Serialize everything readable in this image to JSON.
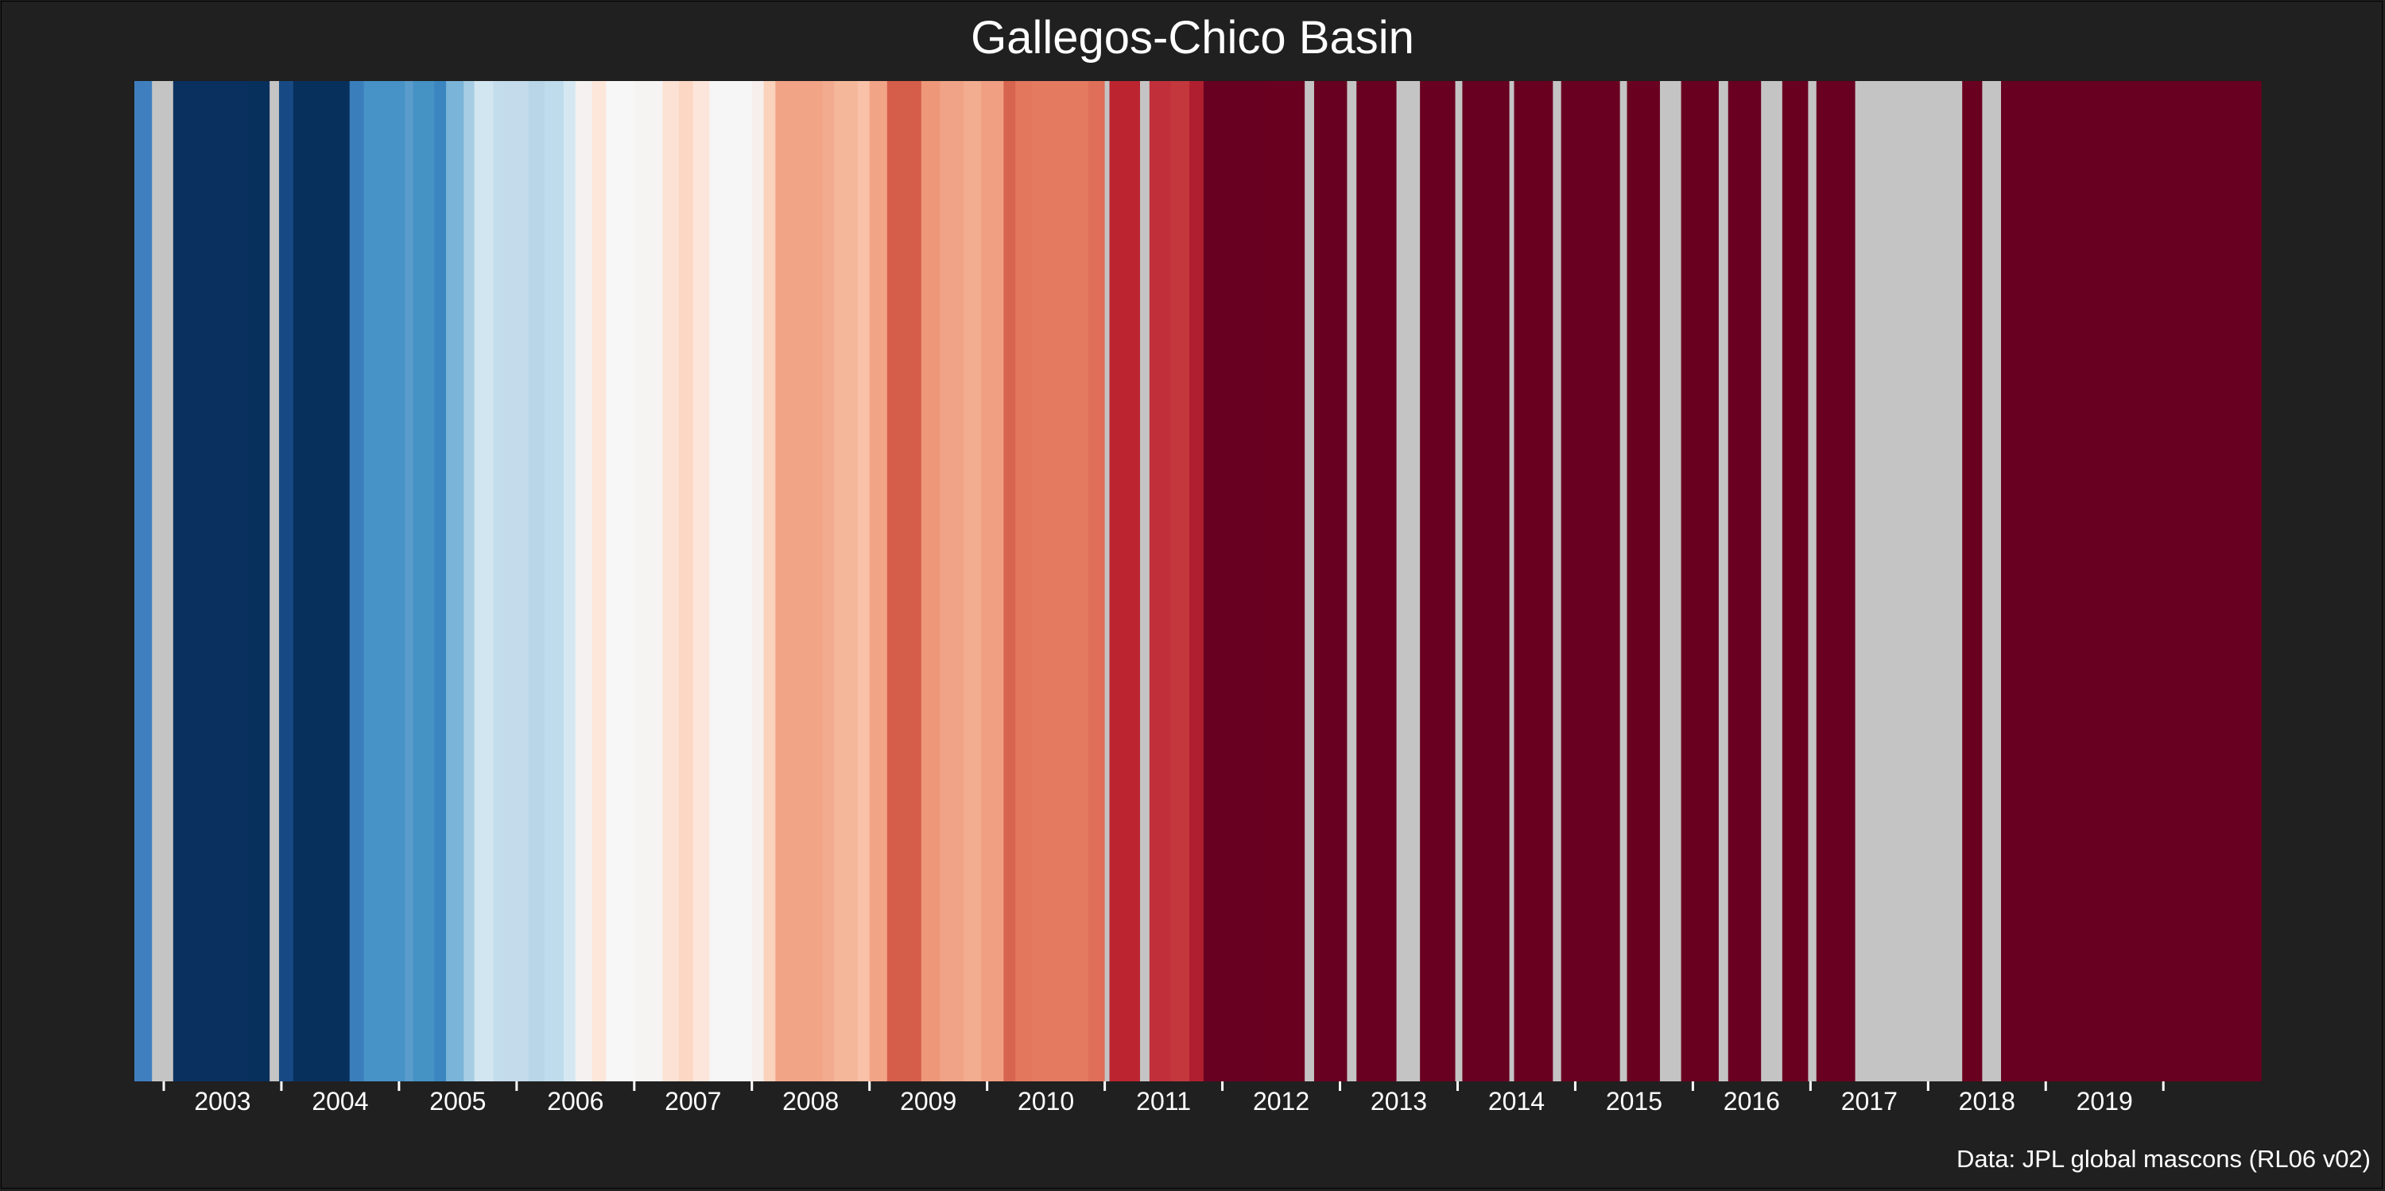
{
  "chart_data": {
    "type": "heatmap",
    "title": "Gallegos-Chico Basin",
    "caption": "Data: JPL global mascons (RL06 v02)",
    "x_range": [
      2002.25,
      2020.33
    ],
    "x_ticks": [
      2002.5,
      2003.5,
      2004.5,
      2005.5,
      2006.5,
      2007.5,
      2008.5,
      2009.5,
      2010.5,
      2011.5,
      2012.5,
      2013.5,
      2014.5,
      2015.5,
      2016.5,
      2017.5,
      2018.5,
      2019.5,
      2020.5
    ],
    "x_labels": [
      {
        "x": 2003,
        "text": "2003"
      },
      {
        "x": 2004,
        "text": "2004"
      },
      {
        "x": 2005,
        "text": "2005"
      },
      {
        "x": 2006,
        "text": "2006"
      },
      {
        "x": 2007,
        "text": "2007"
      },
      {
        "x": 2008,
        "text": "2008"
      },
      {
        "x": 2009,
        "text": "2009"
      },
      {
        "x": 2010,
        "text": "2010"
      },
      {
        "x": 2011,
        "text": "2011"
      },
      {
        "x": 2012,
        "text": "2012"
      },
      {
        "x": 2013,
        "text": "2013"
      },
      {
        "x": 2014,
        "text": "2014"
      },
      {
        "x": 2015,
        "text": "2015"
      },
      {
        "x": 2016,
        "text": "2016"
      },
      {
        "x": 2017,
        "text": "2017"
      },
      {
        "x": 2018,
        "text": "2018"
      },
      {
        "x": 2019,
        "text": "2019"
      }
    ],
    "missing_color": "#c4c4c4",
    "stripes": [
      [
        "2002.25",
        "2002.40",
        "#3f7fc0"
      ],
      [
        "2002.40",
        "2002.58",
        "#c4c4c4"
      ],
      [
        "2002.58",
        "2003.22",
        "#0a3060"
      ],
      [
        "2003.22",
        "2003.40",
        "#08305c"
      ],
      [
        "2003.40",
        "2003.48",
        "#c4c4c4"
      ],
      [
        "2003.48",
        "2003.60",
        "#174a85"
      ],
      [
        "2003.60",
        "2004.08",
        "#08305c"
      ],
      [
        "2004.08",
        "2004.20",
        "#3a7fbc"
      ],
      [
        "2004.20",
        "2004.55",
        "#4792c6"
      ],
      [
        "2004.55",
        "2004.62",
        "#5a9ccb"
      ],
      [
        "2004.62",
        "2004.80",
        "#4592c5"
      ],
      [
        "2004.80",
        "2004.90",
        "#3b86c0"
      ],
      [
        "2004.90",
        "2005.05",
        "#7ab4d8"
      ],
      [
        "2005.05",
        "2005.14",
        "#a6cde4"
      ],
      [
        "2005.14",
        "2005.30",
        "#d2e6f1"
      ],
      [
        "2005.30",
        "2005.40",
        "#c4ddec"
      ],
      [
        "2005.40",
        "2005.60",
        "#c3dbeb"
      ],
      [
        "2005.60",
        "2005.74",
        "#b8d6e8"
      ],
      [
        "2005.74",
        "2005.90",
        "#bfdcec"
      ],
      [
        "2005.90",
        "2006.00",
        "#d5e8f2"
      ],
      [
        "2006.00",
        "2006.14",
        "#f4f1f0"
      ],
      [
        "2006.14",
        "2006.26",
        "#fde6da"
      ],
      [
        "2006.26",
        "2006.50",
        "#f7f7f7"
      ],
      [
        "2006.50",
        "2006.74",
        "#f6f4f3"
      ],
      [
        "2006.74",
        "2006.88",
        "#fbe2d5"
      ],
      [
        "2006.88",
        "2007.00",
        "#fcd7c3"
      ],
      [
        "2007.00",
        "2007.14",
        "#fce6dc"
      ],
      [
        "2007.14",
        "2007.50",
        "#f7f6f6"
      ],
      [
        "2007.50",
        "2007.60",
        "#f6efec"
      ],
      [
        "2007.60",
        "2007.70",
        "#fbd2bb"
      ],
      [
        "2007.70",
        "2008.10",
        "#f2a487"
      ],
      [
        "2008.10",
        "2008.20",
        "#f3ab8f"
      ],
      [
        "2008.20",
        "2008.40",
        "#f5b79a"
      ],
      [
        "2008.40",
        "2008.50",
        "#f9c2a8"
      ],
      [
        "2008.50",
        "2008.65",
        "#f2a487"
      ],
      [
        "2008.65",
        "2008.94",
        "#d55e4a"
      ],
      [
        "2008.94",
        "2009.10",
        "#ee9879"
      ],
      [
        "2009.10",
        "2009.30",
        "#f0a386"
      ],
      [
        "2009.30",
        "2009.45",
        "#f2ad90"
      ],
      [
        "2009.45",
        "2009.64",
        "#f09f82"
      ],
      [
        "2009.64",
        "2009.74",
        "#d7644f"
      ],
      [
        "2009.74",
        "2009.88",
        "#e3775e"
      ],
      [
        "2009.88",
        "2010.36",
        "#e47a60"
      ],
      [
        "2010.36",
        "2010.50",
        "#df6f58"
      ],
      [
        "2010.50",
        "2010.54",
        "#c4c4c4"
      ],
      [
        "2010.54",
        "2010.80",
        "#bc2430"
      ],
      [
        "2010.80",
        "2010.88",
        "#c4c4c4"
      ],
      [
        "2010.88",
        "2011.06",
        "#c1303a"
      ],
      [
        "2011.06",
        "2011.22",
        "#c3373d"
      ],
      [
        "2011.22",
        "2011.34",
        "#b01f2f"
      ],
      [
        "2011.34",
        "2011.86",
        "#670021"
      ],
      [
        "2011.86",
        "2012.20",
        "#6a0020"
      ],
      [
        "2012.20",
        "2012.28",
        "#c4c4c4"
      ],
      [
        "2012.28",
        "2012.56",
        "#670021"
      ],
      [
        "2012.56",
        "2012.64",
        "#c4c4c4"
      ],
      [
        "2012.64",
        "2012.98",
        "#690021"
      ],
      [
        "2012.98",
        "2013.18",
        "#c4c4c4"
      ],
      [
        "2013.18",
        "2013.48",
        "#6a0021"
      ],
      [
        "2013.48",
        "2013.54",
        "#c4c4c4"
      ],
      [
        "2013.54",
        "2013.94",
        "#670021"
      ],
      [
        "2013.94",
        "2013.98",
        "#c4c4c4"
      ],
      [
        "2013.98",
        "2014.31",
        "#690020"
      ],
      [
        "2014.31",
        "2014.38",
        "#c4c4c4"
      ],
      [
        "2014.38",
        "2014.88",
        "#690021"
      ],
      [
        "2014.88",
        "2014.94",
        "#c4c4c4"
      ],
      [
        "2014.94",
        "2015.22",
        "#6a0020"
      ],
      [
        "2015.22",
        "2015.40",
        "#c4c4c4"
      ],
      [
        "2015.40",
        "2015.72",
        "#690020"
      ],
      [
        "2015.72",
        "2015.80",
        "#c4c4c4"
      ],
      [
        "2015.80",
        "2016.08",
        "#690021"
      ],
      [
        "2016.08",
        "2016.26",
        "#c4c4c4"
      ],
      [
        "2016.26",
        "2016.48",
        "#6a0020"
      ],
      [
        "2016.48",
        "2016.55",
        "#c4c4c4"
      ],
      [
        "2016.55",
        "2016.88",
        "#690021"
      ],
      [
        "2016.88",
        "2017.79",
        "#c4c4c4"
      ],
      [
        "2017.79",
        "2017.96",
        "#6a0020"
      ],
      [
        "2017.96",
        "2018.12",
        "#c4c4c4"
      ],
      [
        "2018.12",
        "2020.33",
        "#680021"
      ]
    ]
  }
}
